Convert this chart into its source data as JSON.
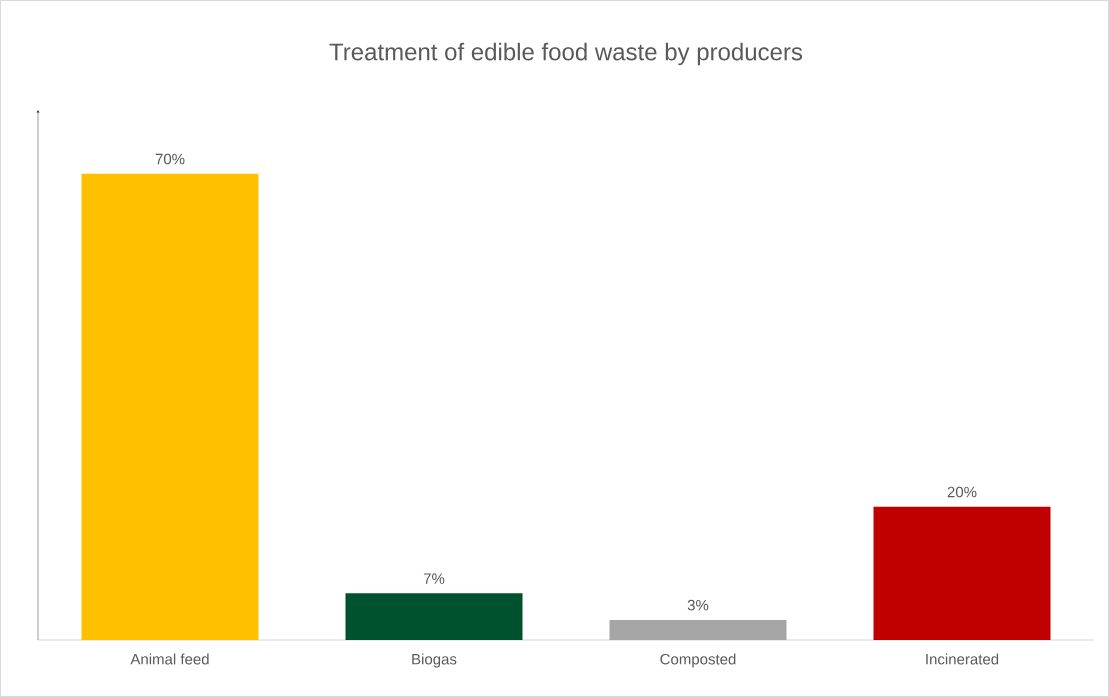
{
  "chart_data": {
    "type": "bar",
    "title": "Treatment of edible food waste by producers",
    "categories": [
      "Animal feed",
      "Biogas",
      "Composted",
      "Incinerated"
    ],
    "values": [
      70,
      7,
      3,
      20
    ],
    "value_labels": [
      "70%",
      "7%",
      "3%",
      "20%"
    ],
    "colors": [
      "#ffc000",
      "#00512d",
      "#a5a5a5",
      "#c00000"
    ]
  }
}
